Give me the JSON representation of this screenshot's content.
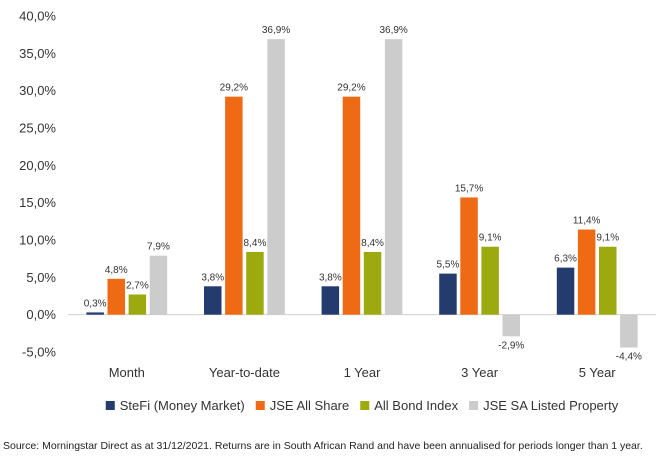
{
  "chart_data": {
    "type": "bar",
    "categories": [
      "Month",
      "Year-to-date",
      "1 Year",
      "3 Year",
      "5 Year"
    ],
    "series": [
      {
        "name": "SteFi (Money Market)",
        "color": "#243B6E",
        "values": [
          0.3,
          3.8,
          3.8,
          5.5,
          6.3
        ],
        "labels": [
          "0,3%",
          "3,8%",
          "3,8%",
          "5,5%",
          "6,3%"
        ]
      },
      {
        "name": "JSE All Share",
        "color": "#EE6A15",
        "values": [
          4.8,
          29.2,
          29.2,
          15.7,
          11.4
        ],
        "labels": [
          "4,8%",
          "29,2%",
          "29,2%",
          "15,7%",
          "11,4%"
        ]
      },
      {
        "name": "All Bond Index",
        "color": "#9DAA0F",
        "values": [
          2.7,
          8.4,
          8.4,
          9.1,
          9.1
        ],
        "labels": [
          "2,7%",
          "8,4%",
          "8,4%",
          "9,1%",
          "9,1%"
        ]
      },
      {
        "name": "JSE SA Listed Property",
        "color": "#CCCCCC",
        "values": [
          7.9,
          36.9,
          36.9,
          -2.9,
          -4.4
        ],
        "labels": [
          "7,9%",
          "36,9%",
          "36,9%",
          "-2,9%",
          "-4,4%"
        ]
      }
    ],
    "ylim": [
      -5,
      40
    ],
    "yticks": [
      40,
      35,
      30,
      25,
      20,
      15,
      10,
      5,
      0,
      -5
    ],
    "ytick_labels": [
      "40,0%",
      "35,0%",
      "30,0%",
      "25,0%",
      "20,0%",
      "15,0%",
      "10,0%",
      "5,0%",
      "0,0%",
      "-5,0%"
    ],
    "grid": false,
    "legend_position": "bottom",
    "source": "Source: Morningstar Direct as at 31/12/2021. Returns are in South African Rand and have been annualised for periods longer than 1 year."
  }
}
